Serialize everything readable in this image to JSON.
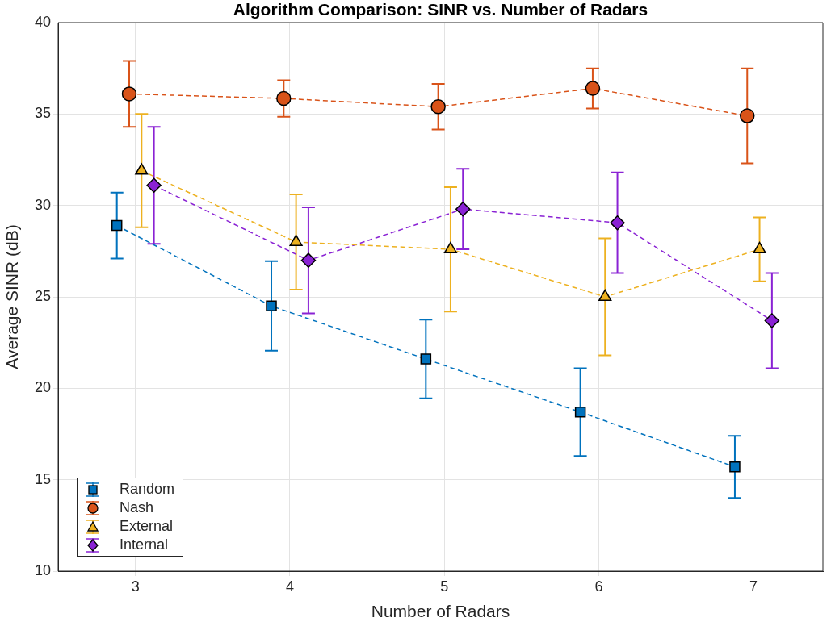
{
  "chart_data": {
    "type": "line",
    "title": "Algorithm Comparison: SINR vs. Number of Radars",
    "xlabel": "Number of Radars",
    "ylabel": "Average SINR (dB)",
    "xlim": [
      2.5,
      7.45
    ],
    "xticks": [
      3,
      4,
      5,
      6,
      7
    ],
    "ylim": [
      10,
      40
    ],
    "yticks": [
      10,
      15,
      20,
      25,
      30,
      35,
      40
    ],
    "grid": true,
    "legend": "bottom left",
    "line_style": "dashed",
    "series": [
      {
        "name": "Random",
        "color": "#0072bd",
        "marker": "square",
        "x": [
          2.88,
          3.88,
          4.88,
          5.88,
          6.88
        ],
        "values": [
          28.9,
          24.5,
          21.6,
          18.7,
          15.7
        ],
        "errors": [
          1.8,
          2.45,
          2.15,
          2.4,
          1.7
        ]
      },
      {
        "name": "Nash",
        "color": "#d95319",
        "marker": "circle",
        "x": [
          2.96,
          3.96,
          4.96,
          5.96,
          6.96
        ],
        "values": [
          36.1,
          35.85,
          35.4,
          36.4,
          34.9
        ],
        "errors": [
          1.8,
          1.0,
          1.25,
          1.1,
          2.6
        ]
      },
      {
        "name": "External",
        "color": "#edb120",
        "marker": "triangle",
        "x": [
          3.04,
          4.04,
          5.04,
          6.04,
          7.04
        ],
        "values": [
          31.9,
          28.0,
          27.6,
          25.0,
          27.6
        ],
        "errors": [
          3.1,
          2.6,
          3.4,
          3.2,
          1.75
        ]
      },
      {
        "name": "Internal",
        "color": "#8a22d4",
        "marker": "diamond",
        "x": [
          3.12,
          4.12,
          5.12,
          6.12,
          7.12
        ],
        "values": [
          31.1,
          27.0,
          29.8,
          29.05,
          23.7
        ],
        "errors": [
          3.2,
          2.9,
          2.2,
          2.75,
          2.6
        ]
      }
    ]
  }
}
